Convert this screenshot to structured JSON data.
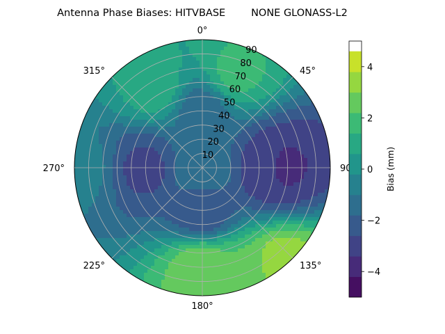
{
  "chart_data": {
    "type": "heatmap",
    "projection": "polar",
    "title": "Antenna Phase Biases: HITVBASE        NONE GLONASS-L2",
    "angular_ticks": [
      "0°",
      "45°",
      "90°",
      "135°",
      "180°",
      "225°",
      "270°",
      "315°"
    ],
    "angular_tick_values": [
      0,
      45,
      90,
      135,
      180,
      225,
      270,
      315
    ],
    "radial_ticks": [
      "10",
      "20",
      "30",
      "40",
      "50",
      "60",
      "70",
      "80",
      "90"
    ],
    "radial_tick_values": [
      10,
      20,
      30,
      40,
      50,
      60,
      70,
      80,
      90
    ],
    "radial_axis_label": "",
    "rlim": [
      0,
      90
    ],
    "theta_zero": "top",
    "theta_direction": "clockwise",
    "grid": true,
    "colorbar": {
      "label": "Bias (mm)",
      "range": [
        -5,
        5
      ],
      "levels": [
        -5,
        -4.2,
        -3.4,
        -2.6,
        -1.8,
        -1.0,
        -0.2,
        0.6,
        1.4,
        2.2,
        3.0,
        3.8,
        4.6
      ],
      "tick_labels": [
        "−4",
        "−2",
        "0",
        "2",
        "4"
      ],
      "tick_values": [
        -4,
        -2,
        0,
        2,
        4
      ],
      "colormap": "viridis"
    },
    "field_description": "bias (mm) sampled at azimuth/elevation-from-zenith",
    "samples": [
      {
        "az": 0,
        "r": 0,
        "bias": -1.0
      },
      {
        "az": 90,
        "r": 45,
        "bias": -3.0
      },
      {
        "az": 90,
        "r": 55,
        "bias": -3.6
      },
      {
        "az": 180,
        "r": 30,
        "bias": -2.6
      },
      {
        "az": 270,
        "r": 40,
        "bias": -2.8
      },
      {
        "az": 0,
        "r": 40,
        "bias": -1.5
      },
      {
        "az": 330,
        "r": 65,
        "bias": 1.0
      },
      {
        "az": 20,
        "r": 70,
        "bias": 1.6
      },
      {
        "az": 180,
        "r": 70,
        "bias": 2.8
      },
      {
        "az": 160,
        "r": 80,
        "bias": 2.4
      },
      {
        "az": 140,
        "r": 88,
        "bias": 3.5
      },
      {
        "az": 270,
        "r": 85,
        "bias": -0.8
      }
    ]
  }
}
